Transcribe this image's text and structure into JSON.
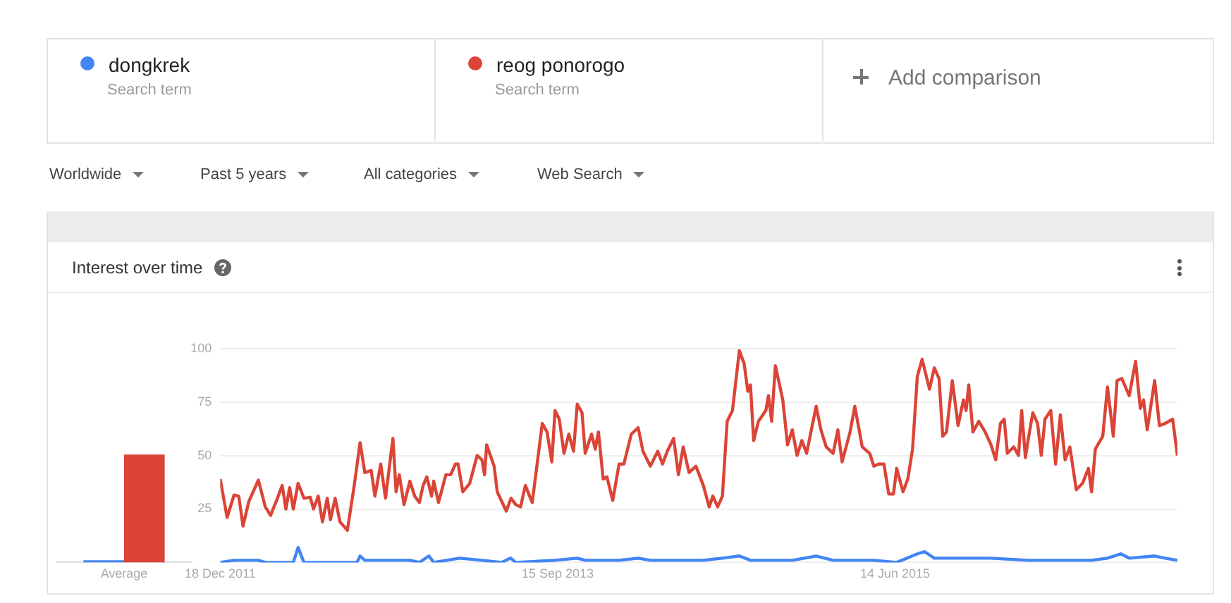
{
  "chart_data": [
    {
      "type": "bar",
      "title": "Interest over time",
      "categories": [
        "Average"
      ],
      "ylim": [
        0,
        100
      ],
      "tick_labels": "x",
      "grid": false,
      "legend": false,
      "series": [
        {
          "color": "#4285f4",
          "values": [
            1
          ]
        },
        {
          "color": "#db4437",
          "values": [
            50
          ]
        }
      ]
    },
    {
      "type": "line",
      "legend": "top",
      "grid": "y",
      "annotations": [
        "Search term",
        "Search term",
        "Add comparison",
        "Worldwide",
        "Past 5 years",
        "All categories",
        "Web Search"
      ],
      "xlim": [
        "2011-12-18",
        "2016-11-28"
      ],
      "xticks": [
        {
          "value": "2011-12-18",
          "label": "18 Dec 2011"
        },
        {
          "value": "2013-09-15",
          "label": "15 Sep 2013"
        },
        {
          "value": "2015-06-14",
          "label": "14 Jun 2015"
        }
      ],
      "ylim": [
        0,
        100
      ],
      "yticks": [
        {
          "value": 0,
          "label": null
        },
        25,
        50,
        75,
        100
      ],
      "series": [
        {
          "name": "dongkrek",
          "color": "#4285f4",
          "x": [
            "2011-12-18",
            "2012-01-13",
            "2012-02-28",
            "2012-03-12",
            "2012-05-04",
            "2012-05-13",
            "2012-05-24",
            "2012-09-01",
            "2012-09-07",
            "2012-09-16",
            "2012-12-10",
            "2012-12-28",
            "2013-01-15",
            "2013-01-24",
            "2013-03-14",
            "2013-04-25",
            "2013-06-01",
            "2013-06-18",
            "2013-06-28",
            "2013-09-10",
            "2013-10-22",
            "2013-11-06",
            "2014-01-09",
            "2014-02-14",
            "2014-03-09",
            "2014-06-17",
            "2014-07-23",
            "2014-08-24",
            "2014-09-14",
            "2014-12-02",
            "2015-01-16",
            "2015-02-17",
            "2015-05-05",
            "2015-06-17",
            "2015-07-26",
            "2015-08-09",
            "2015-08-27",
            "2015-10-21",
            "2015-12-12",
            "2016-02-20",
            "2016-04-12",
            "2016-06-19",
            "2016-07-19",
            "2016-08-13",
            "2016-08-29",
            "2016-10-16",
            "2016-11-05",
            "2016-11-28"
          ],
          "values": [
            0,
            1,
            1,
            0,
            0,
            7,
            0,
            0,
            3,
            1,
            1,
            0,
            3,
            0,
            2,
            1,
            0,
            2,
            0,
            1,
            2,
            1,
            1,
            2,
            1,
            1,
            2,
            3,
            1,
            1,
            3,
            1,
            1,
            0,
            4,
            5,
            2,
            2,
            2,
            1,
            1,
            1,
            2,
            4,
            2,
            3,
            2,
            1
          ]
        },
        {
          "name": "reog ponorogo",
          "color": "#db4437",
          "x": [
            "2011-12-18",
            "2011-12-31",
            "2012-01-13",
            "2012-01-22",
            "2012-01-30",
            "2012-02-10",
            "2012-02-28",
            "2012-03-12",
            "2012-03-22",
            "2012-04-04",
            "2012-04-13",
            "2012-04-20",
            "2012-04-27",
            "2012-05-04",
            "2012-05-13",
            "2012-05-24",
            "2012-06-05",
            "2012-06-11",
            "2012-06-20",
            "2012-06-28",
            "2012-07-07",
            "2012-07-13",
            "2012-07-22",
            "2012-07-31",
            "2012-08-14",
            "2012-08-27",
            "2012-09-07",
            "2012-09-16",
            "2012-09-28",
            "2012-10-05",
            "2012-10-16",
            "2012-10-25",
            "2012-11-08",
            "2012-11-14",
            "2012-11-20",
            "2012-11-29",
            "2012-12-10",
            "2012-12-19",
            "2012-12-28",
            "2013-01-04",
            "2013-01-11",
            "2013-01-20",
            "2013-01-24",
            "2013-02-02",
            "2013-02-16",
            "2013-02-25",
            "2013-03-06",
            "2013-03-11",
            "2013-03-20",
            "2013-04-02",
            "2013-04-16",
            "2013-04-25",
            "2013-04-30",
            "2013-05-04",
            "2013-05-18",
            "2013-05-24",
            "2013-06-10",
            "2013-06-19",
            "2013-06-28",
            "2013-07-07",
            "2013-07-16",
            "2013-07-29",
            "2013-08-17",
            "2013-08-26",
            "2013-09-04",
            "2013-09-10",
            "2013-09-18",
            "2013-09-27",
            "2013-10-06",
            "2013-10-15",
            "2013-10-22",
            "2013-10-31",
            "2013-11-06",
            "2013-11-18",
            "2013-11-25",
            "2013-12-01",
            "2013-12-10",
            "2013-12-17",
            "2013-12-28",
            "2014-01-09",
            "2014-01-18",
            "2014-02-01",
            "2014-02-14",
            "2014-02-23",
            "2014-03-09",
            "2014-03-23",
            "2014-04-01",
            "2014-04-10",
            "2014-04-22",
            "2014-05-01",
            "2014-05-10",
            "2014-05-21",
            "2014-06-03",
            "2014-06-17",
            "2014-06-28",
            "2014-07-05",
            "2014-07-14",
            "2014-07-23",
            "2014-08-01",
            "2014-08-11",
            "2014-08-24",
            "2014-09-02",
            "2014-09-09",
            "2014-09-14",
            "2014-09-20",
            "2014-09-29",
            "2014-10-13",
            "2014-10-18",
            "2014-10-24",
            "2014-10-31",
            "2014-11-14",
            "2014-11-23",
            "2014-12-02",
            "2014-12-11",
            "2014-12-20",
            "2014-12-29",
            "2015-01-16",
            "2015-01-25",
            "2015-02-04",
            "2015-02-17",
            "2015-02-26",
            "2015-03-06",
            "2015-03-21",
            "2015-03-30",
            "2015-04-13",
            "2015-04-27",
            "2015-05-05",
            "2015-05-14",
            "2015-05-24",
            "2015-06-02",
            "2015-06-11",
            "2015-06-17",
            "2015-06-29",
            "2015-07-08",
            "2015-07-17",
            "2015-07-26",
            "2015-08-04",
            "2015-08-18",
            "2015-08-27",
            "2015-09-05",
            "2015-09-12",
            "2015-09-19",
            "2015-09-30",
            "2015-10-11",
            "2015-10-21",
            "2015-10-26",
            "2015-10-31",
            "2015-11-08",
            "2015-11-19",
            "2015-12-01",
            "2015-12-12",
            "2015-12-21",
            "2015-12-30",
            "2016-01-06",
            "2016-01-12",
            "2016-01-24",
            "2016-02-02",
            "2016-02-08",
            "2016-02-15",
            "2016-02-20",
            "2016-02-29",
            "2016-03-09",
            "2016-03-16",
            "2016-03-23",
            "2016-04-03",
            "2016-04-12",
            "2016-04-21",
            "2016-04-30",
            "2016-05-09",
            "2016-05-21",
            "2016-06-02",
            "2016-06-13",
            "2016-06-19",
            "2016-06-26",
            "2016-07-10",
            "2016-07-19",
            "2016-07-30",
            "2016-08-06",
            "2016-08-15",
            "2016-08-29",
            "2016-09-10",
            "2016-09-19",
            "2016-09-25",
            "2016-10-02",
            "2016-10-16",
            "2016-10-25",
            "2016-11-05",
            "2016-11-19",
            "2016-11-28"
          ],
          "values": [
            39,
            21,
            31.5,
            31,
            17,
            28.5,
            38.5,
            26,
            22,
            30,
            36,
            25,
            35,
            25,
            37,
            30,
            30.5,
            25,
            31,
            19,
            30,
            20,
            30,
            19,
            15,
            36,
            56,
            42,
            43,
            31,
            46,
            30,
            58,
            33,
            41,
            27,
            38,
            31,
            28,
            36,
            40,
            31,
            38,
            28,
            41,
            41,
            46,
            46,
            33,
            37,
            50,
            48,
            41,
            55,
            45,
            33,
            24,
            30,
            27,
            26,
            36,
            28,
            65,
            61,
            47,
            71,
            67,
            51,
            60,
            52,
            74,
            70,
            51,
            60,
            53,
            61,
            39,
            40,
            29,
            46,
            46,
            60,
            63,
            52,
            45,
            52,
            46,
            52,
            58,
            41,
            54,
            42,
            45,
            36,
            26,
            31,
            26,
            31,
            66,
            71,
            99,
            93,
            80,
            83,
            57,
            66,
            71,
            78,
            66,
            92,
            76,
            55,
            62,
            50,
            57,
            51,
            73,
            62,
            54,
            51,
            62,
            47,
            61,
            73,
            54,
            51,
            45,
            46,
            46,
            32,
            32,
            44,
            33,
            39,
            53,
            87,
            95,
            81,
            91,
            86,
            59,
            61,
            85,
            64,
            76,
            71,
            83,
            61,
            66,
            61,
            55,
            48,
            65,
            67,
            51,
            54,
            50,
            71,
            49,
            57,
            70,
            65,
            50,
            67,
            71,
            46,
            69,
            48,
            54,
            34,
            37,
            44,
            33,
            53,
            59,
            82,
            59,
            85,
            86,
            78,
            94,
            72,
            76,
            62,
            85,
            64,
            65,
            67,
            50
          ]
        }
      ]
    }
  ]
}
